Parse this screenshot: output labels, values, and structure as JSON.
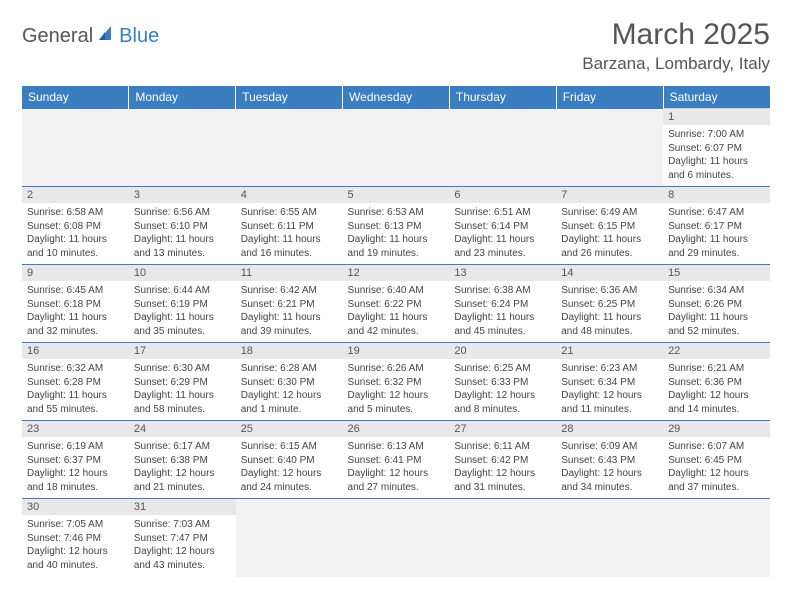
{
  "logo": {
    "general": "General",
    "blue": "Blue"
  },
  "title": "March 2025",
  "location": "Barzana, Lombardy, Italy",
  "colors": {
    "header_bg": "#3a7ec1",
    "header_text": "#ffffff",
    "daynum_bg": "#e8e8e8",
    "empty_bg": "#f2f2f2",
    "border": "#3a7ec1",
    "text": "#444444",
    "title_text": "#555555"
  },
  "days_of_week": [
    "Sunday",
    "Monday",
    "Tuesday",
    "Wednesday",
    "Thursday",
    "Friday",
    "Saturday"
  ],
  "weeks": [
    [
      null,
      null,
      null,
      null,
      null,
      null,
      {
        "n": "1",
        "sr": "Sunrise: 7:00 AM",
        "ss": "Sunset: 6:07 PM",
        "dl1": "Daylight: 11 hours",
        "dl2": "and 6 minutes."
      }
    ],
    [
      {
        "n": "2",
        "sr": "Sunrise: 6:58 AM",
        "ss": "Sunset: 6:08 PM",
        "dl1": "Daylight: 11 hours",
        "dl2": "and 10 minutes."
      },
      {
        "n": "3",
        "sr": "Sunrise: 6:56 AM",
        "ss": "Sunset: 6:10 PM",
        "dl1": "Daylight: 11 hours",
        "dl2": "and 13 minutes."
      },
      {
        "n": "4",
        "sr": "Sunrise: 6:55 AM",
        "ss": "Sunset: 6:11 PM",
        "dl1": "Daylight: 11 hours",
        "dl2": "and 16 minutes."
      },
      {
        "n": "5",
        "sr": "Sunrise: 6:53 AM",
        "ss": "Sunset: 6:13 PM",
        "dl1": "Daylight: 11 hours",
        "dl2": "and 19 minutes."
      },
      {
        "n": "6",
        "sr": "Sunrise: 6:51 AM",
        "ss": "Sunset: 6:14 PM",
        "dl1": "Daylight: 11 hours",
        "dl2": "and 23 minutes."
      },
      {
        "n": "7",
        "sr": "Sunrise: 6:49 AM",
        "ss": "Sunset: 6:15 PM",
        "dl1": "Daylight: 11 hours",
        "dl2": "and 26 minutes."
      },
      {
        "n": "8",
        "sr": "Sunrise: 6:47 AM",
        "ss": "Sunset: 6:17 PM",
        "dl1": "Daylight: 11 hours",
        "dl2": "and 29 minutes."
      }
    ],
    [
      {
        "n": "9",
        "sr": "Sunrise: 6:45 AM",
        "ss": "Sunset: 6:18 PM",
        "dl1": "Daylight: 11 hours",
        "dl2": "and 32 minutes."
      },
      {
        "n": "10",
        "sr": "Sunrise: 6:44 AM",
        "ss": "Sunset: 6:19 PM",
        "dl1": "Daylight: 11 hours",
        "dl2": "and 35 minutes."
      },
      {
        "n": "11",
        "sr": "Sunrise: 6:42 AM",
        "ss": "Sunset: 6:21 PM",
        "dl1": "Daylight: 11 hours",
        "dl2": "and 39 minutes."
      },
      {
        "n": "12",
        "sr": "Sunrise: 6:40 AM",
        "ss": "Sunset: 6:22 PM",
        "dl1": "Daylight: 11 hours",
        "dl2": "and 42 minutes."
      },
      {
        "n": "13",
        "sr": "Sunrise: 6:38 AM",
        "ss": "Sunset: 6:24 PM",
        "dl1": "Daylight: 11 hours",
        "dl2": "and 45 minutes."
      },
      {
        "n": "14",
        "sr": "Sunrise: 6:36 AM",
        "ss": "Sunset: 6:25 PM",
        "dl1": "Daylight: 11 hours",
        "dl2": "and 48 minutes."
      },
      {
        "n": "15",
        "sr": "Sunrise: 6:34 AM",
        "ss": "Sunset: 6:26 PM",
        "dl1": "Daylight: 11 hours",
        "dl2": "and 52 minutes."
      }
    ],
    [
      {
        "n": "16",
        "sr": "Sunrise: 6:32 AM",
        "ss": "Sunset: 6:28 PM",
        "dl1": "Daylight: 11 hours",
        "dl2": "and 55 minutes."
      },
      {
        "n": "17",
        "sr": "Sunrise: 6:30 AM",
        "ss": "Sunset: 6:29 PM",
        "dl1": "Daylight: 11 hours",
        "dl2": "and 58 minutes."
      },
      {
        "n": "18",
        "sr": "Sunrise: 6:28 AM",
        "ss": "Sunset: 6:30 PM",
        "dl1": "Daylight: 12 hours",
        "dl2": "and 1 minute."
      },
      {
        "n": "19",
        "sr": "Sunrise: 6:26 AM",
        "ss": "Sunset: 6:32 PM",
        "dl1": "Daylight: 12 hours",
        "dl2": "and 5 minutes."
      },
      {
        "n": "20",
        "sr": "Sunrise: 6:25 AM",
        "ss": "Sunset: 6:33 PM",
        "dl1": "Daylight: 12 hours",
        "dl2": "and 8 minutes."
      },
      {
        "n": "21",
        "sr": "Sunrise: 6:23 AM",
        "ss": "Sunset: 6:34 PM",
        "dl1": "Daylight: 12 hours",
        "dl2": "and 11 minutes."
      },
      {
        "n": "22",
        "sr": "Sunrise: 6:21 AM",
        "ss": "Sunset: 6:36 PM",
        "dl1": "Daylight: 12 hours",
        "dl2": "and 14 minutes."
      }
    ],
    [
      {
        "n": "23",
        "sr": "Sunrise: 6:19 AM",
        "ss": "Sunset: 6:37 PM",
        "dl1": "Daylight: 12 hours",
        "dl2": "and 18 minutes."
      },
      {
        "n": "24",
        "sr": "Sunrise: 6:17 AM",
        "ss": "Sunset: 6:38 PM",
        "dl1": "Daylight: 12 hours",
        "dl2": "and 21 minutes."
      },
      {
        "n": "25",
        "sr": "Sunrise: 6:15 AM",
        "ss": "Sunset: 6:40 PM",
        "dl1": "Daylight: 12 hours",
        "dl2": "and 24 minutes."
      },
      {
        "n": "26",
        "sr": "Sunrise: 6:13 AM",
        "ss": "Sunset: 6:41 PM",
        "dl1": "Daylight: 12 hours",
        "dl2": "and 27 minutes."
      },
      {
        "n": "27",
        "sr": "Sunrise: 6:11 AM",
        "ss": "Sunset: 6:42 PM",
        "dl1": "Daylight: 12 hours",
        "dl2": "and 31 minutes."
      },
      {
        "n": "28",
        "sr": "Sunrise: 6:09 AM",
        "ss": "Sunset: 6:43 PM",
        "dl1": "Daylight: 12 hours",
        "dl2": "and 34 minutes."
      },
      {
        "n": "29",
        "sr": "Sunrise: 6:07 AM",
        "ss": "Sunset: 6:45 PM",
        "dl1": "Daylight: 12 hours",
        "dl2": "and 37 minutes."
      }
    ],
    [
      {
        "n": "30",
        "sr": "Sunrise: 7:05 AM",
        "ss": "Sunset: 7:46 PM",
        "dl1": "Daylight: 12 hours",
        "dl2": "and 40 minutes."
      },
      {
        "n": "31",
        "sr": "Sunrise: 7:03 AM",
        "ss": "Sunset: 7:47 PM",
        "dl1": "Daylight: 12 hours",
        "dl2": "and 43 minutes."
      },
      null,
      null,
      null,
      null,
      null
    ]
  ]
}
